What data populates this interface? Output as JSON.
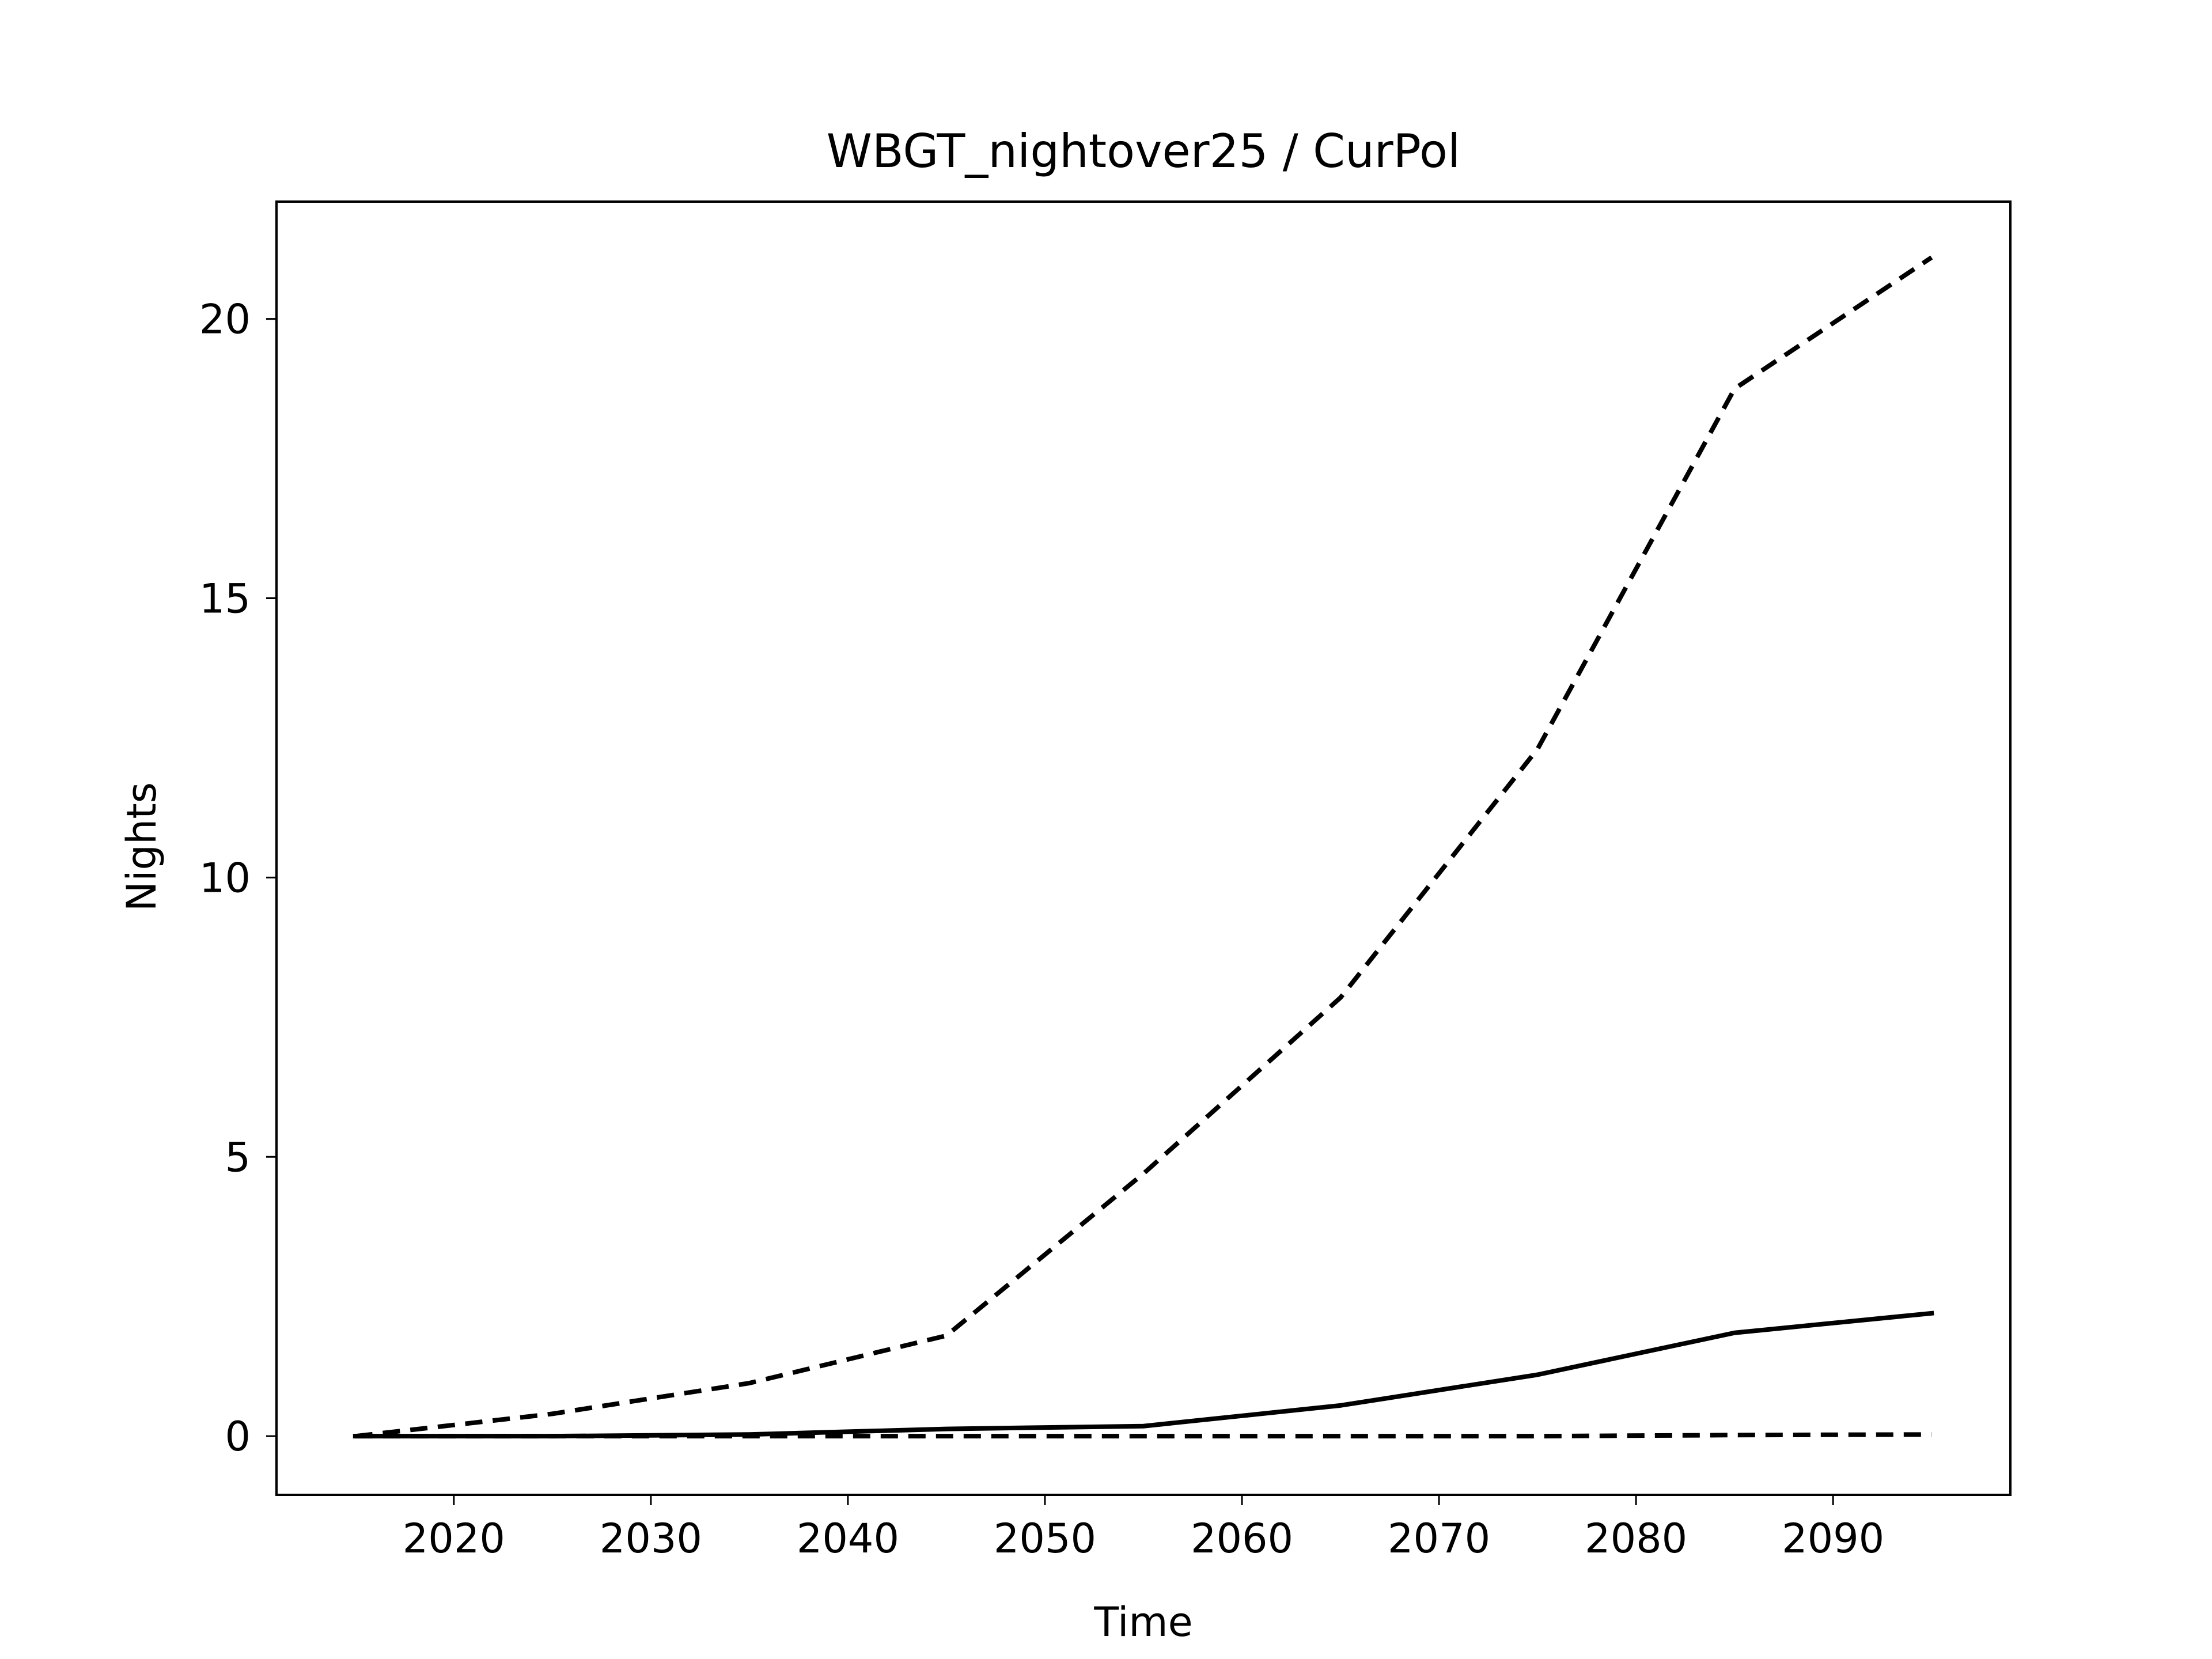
{
  "chart_data": {
    "type": "line",
    "title": "WBGT_nightover25 / CurPol",
    "xlabel": "Time",
    "ylabel": "Nights",
    "xlim": [
      2011,
      2099
    ],
    "ylim": [
      -1.05,
      22.1
    ],
    "x_ticks": [
      2020,
      2030,
      2040,
      2050,
      2060,
      2070,
      2080,
      2090
    ],
    "y_ticks": [
      0,
      5,
      10,
      15,
      20
    ],
    "grid": false,
    "legend": "none",
    "line_color": "#000000",
    "series": [
      {
        "style": "dashed",
        "x": [
          2015,
          2025,
          2035,
          2045,
          2055,
          2065,
          2075,
          2085,
          2095
        ],
        "y": [
          0.0,
          0.4,
          0.95,
          1.8,
          4.7,
          7.85,
          12.3,
          18.75,
          21.1
        ]
      },
      {
        "style": "solid",
        "x": [
          2015,
          2025,
          2035,
          2045,
          2055,
          2065,
          2075,
          2085,
          2095
        ],
        "y": [
          0.0,
          0.0,
          0.03,
          0.13,
          0.18,
          0.55,
          1.1,
          1.85,
          2.2
        ]
      },
      {
        "style": "dashed",
        "x": [
          2015,
          2025,
          2035,
          2045,
          2055,
          2065,
          2075,
          2085,
          2095
        ],
        "y": [
          0.0,
          0.0,
          0.0,
          0.0,
          0.0,
          0.0,
          0.0,
          0.02,
          0.03
        ]
      }
    ]
  }
}
